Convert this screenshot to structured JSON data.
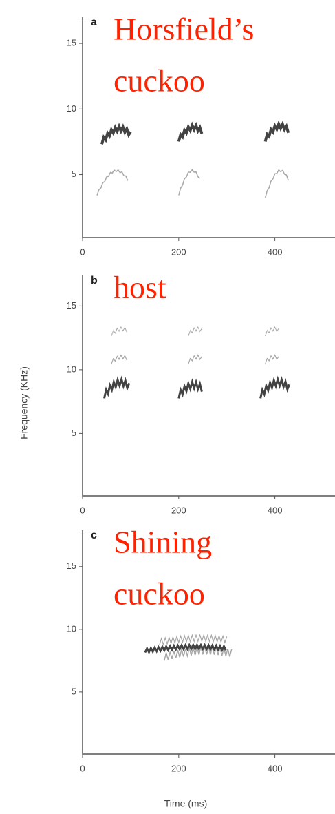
{
  "chart_data": [
    {
      "type": "spectrogram",
      "panel_label": "a",
      "annotation": [
        "Horsfield’s",
        "cuckoo"
      ],
      "xlim": [
        0,
        525
      ],
      "ylim": [
        0.2,
        17
      ],
      "xticks": [
        0,
        200,
        400
      ],
      "yticks": [
        5,
        10,
        15
      ]
    },
    {
      "type": "spectrogram",
      "panel_label": "b",
      "annotation": [
        "host"
      ],
      "y_label": "Frequency (KHz)",
      "xlim": [
        0,
        525
      ],
      "ylim": [
        0.1,
        17.4
      ],
      "xticks": [
        0,
        200,
        400
      ],
      "yticks": [
        5,
        10,
        15
      ]
    },
    {
      "type": "spectrogram",
      "panel_label": "c",
      "annotation": [
        "Shining",
        "cuckoo"
      ],
      "x_label": "Time (ms)",
      "xlim": [
        0,
        525
      ],
      "ylim": [
        0.05,
        17.9
      ],
      "xticks": [
        0,
        200,
        400
      ],
      "yticks": [
        5,
        10,
        15
      ]
    }
  ]
}
